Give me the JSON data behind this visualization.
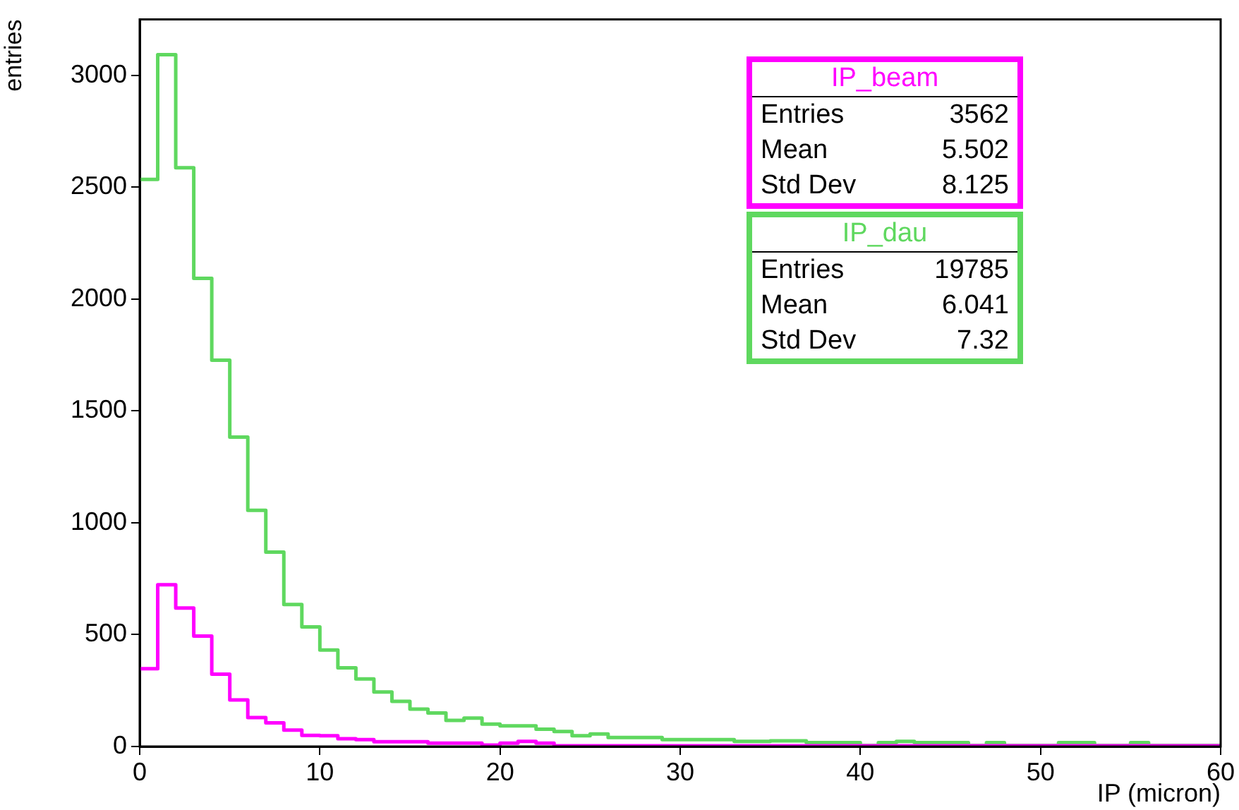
{
  "chart_data": {
    "type": "histogram",
    "xlabel": "IP (micron)",
    "ylabel": "entries",
    "bins": [
      0,
      1,
      2,
      3,
      4,
      5,
      6,
      7,
      8,
      9,
      10,
      11,
      12,
      13,
      14,
      15,
      16,
      17,
      18,
      19,
      20,
      21,
      22,
      23,
      24,
      25,
      26,
      27,
      28,
      29,
      30,
      31,
      32,
      33,
      34,
      35,
      36,
      37,
      38,
      39,
      40,
      41,
      42,
      43,
      44,
      45,
      46,
      47,
      48,
      49,
      50,
      51,
      52,
      53,
      54,
      55,
      56,
      57,
      58,
      59,
      60
    ],
    "series": [
      {
        "name": "IP_beam",
        "color": "#ff00ff",
        "values": [
          348,
          723,
          619,
          494,
          323,
          208,
          129,
          106,
          73,
          50,
          48,
          35,
          31,
          21,
          21,
          21,
          15,
          15,
          15,
          6,
          15,
          23,
          15,
          3,
          3,
          3,
          3,
          3,
          3,
          3,
          3,
          3,
          3,
          3,
          3,
          3,
          3,
          3,
          3,
          3,
          3,
          3,
          3,
          3,
          3,
          3,
          3,
          3,
          3,
          3,
          3,
          3,
          3,
          3,
          3,
          3,
          3,
          3,
          3,
          3
        ]
      },
      {
        "name": "IP_dau",
        "color": "#5fd85f",
        "values": [
          2535,
          3093,
          2587,
          2093,
          1727,
          1383,
          1056,
          869,
          635,
          535,
          431,
          352,
          302,
          244,
          202,
          167,
          150,
          117,
          127,
          100,
          92,
          92,
          77,
          67,
          48,
          56,
          40,
          40,
          40,
          31,
          31,
          31,
          31,
          23,
          23,
          25,
          25,
          17,
          17,
          17,
          5,
          17,
          23,
          17,
          17,
          17,
          5,
          17,
          5,
          5,
          5,
          17,
          17,
          5,
          5,
          17,
          5,
          5,
          5,
          5
        ]
      }
    ],
    "annotations": [
      "Entries 3562",
      "Mean 5.502",
      "Std Dev 8.125",
      "Entries 19785",
      "Mean 6.041",
      "Std Dev 7.32"
    ],
    "xlim": [
      0,
      60
    ],
    "xticks": [
      0,
      10,
      20,
      30,
      40,
      50,
      60
    ],
    "ylim": [
      0,
      3250
    ],
    "yticks": [
      0,
      500,
      1000,
      1500,
      2000,
      2500,
      3000
    ],
    "grid": false,
    "legend": "top right"
  }
}
